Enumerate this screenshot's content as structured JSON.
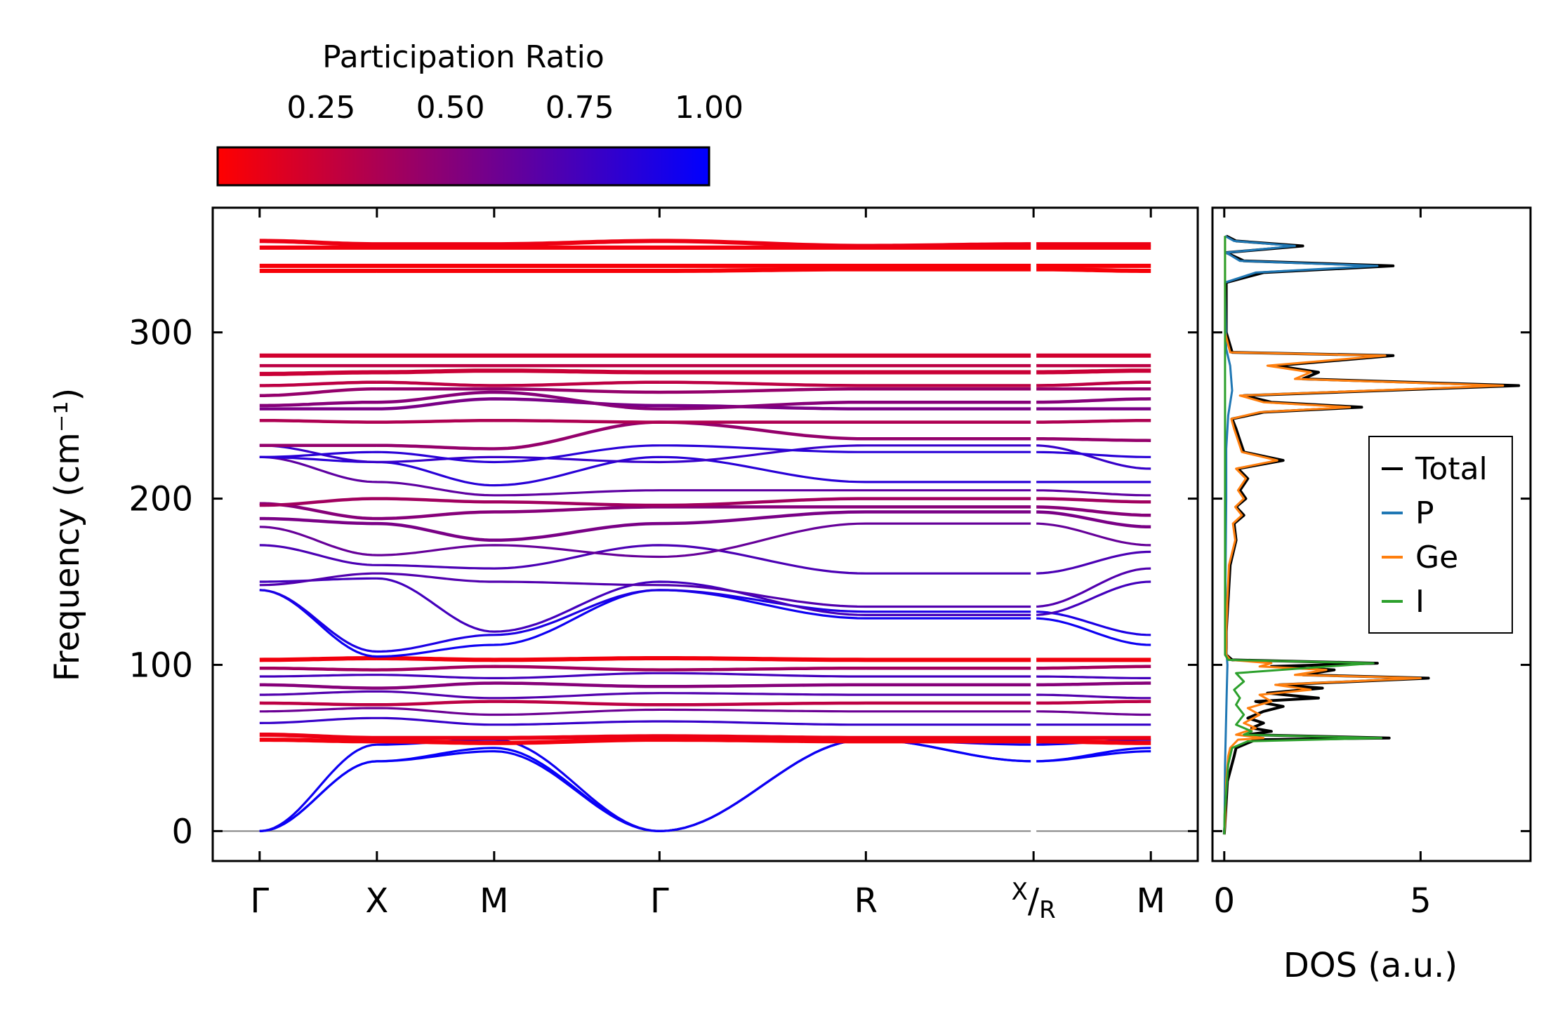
{
  "colors": {
    "low": "#ff0000",
    "high": "#0000ff",
    "total": "#000000",
    "p": "#1f77b4",
    "ge": "#ff7f0e",
    "i": "#2ca02c",
    "zero_line": "#808080"
  },
  "colorbar": {
    "title": "Participation Ratio",
    "ticks": [
      0.25,
      0.5,
      0.75,
      1.0
    ],
    "tick_labels": [
      "0.25",
      "0.50",
      "0.75",
      "1.00"
    ],
    "range": [
      0.05,
      1.0
    ]
  },
  "chart_data": [
    {
      "type": "line",
      "title": "",
      "xlabel": "",
      "ylabel": "Frequency (cm⁻¹)",
      "ylim": [
        -18,
        375
      ],
      "yticks": [
        0,
        100,
        200,
        300
      ],
      "ytick_labels": [
        "0",
        "100",
        "200",
        "300"
      ],
      "path_positions": [
        0.0,
        1.0,
        2.0,
        3.41,
        5.17,
        6.6,
        7.6
      ],
      "path_labels": [
        "Γ",
        "X",
        "M",
        "Γ",
        "R",
        "X/R",
        "M"
      ],
      "xlim": [
        -0.4,
        8.0
      ],
      "break_at": 6.6,
      "color_by": "participation_ratio",
      "bands": [
        {
          "freq": [
            0,
            42,
            50,
            0,
            55,
            42,
            50
          ],
          "pr": 0.98
        },
        {
          "freq": [
            0,
            42,
            48,
            0,
            55,
            42,
            48
          ],
          "pr": 0.97
        },
        {
          "freq": [
            0,
            52,
            55,
            0,
            55,
            52,
            55
          ],
          "pr": 0.95
        },
        {
          "freq": [
            55,
            54,
            53,
            55,
            54,
            54,
            53
          ],
          "pr": 0.1
        },
        {
          "freq": [
            58,
            56,
            56,
            57,
            56,
            56,
            56
          ],
          "pr": 0.12
        },
        {
          "freq": [
            65,
            68,
            64,
            66,
            64,
            64,
            64
          ],
          "pr": 0.8
        },
        {
          "freq": [
            72,
            74,
            70,
            73,
            72,
            72,
            70
          ],
          "pr": 0.6
        },
        {
          "freq": [
            77,
            76,
            78,
            76,
            77,
            77,
            78
          ],
          "pr": 0.3
        },
        {
          "freq": [
            82,
            84,
            80,
            83,
            82,
            82,
            80
          ],
          "pr": 0.7
        },
        {
          "freq": [
            88,
            86,
            89,
            87,
            88,
            88,
            89
          ],
          "pr": 0.5
        },
        {
          "freq": [
            93,
            94,
            92,
            95,
            93,
            93,
            92
          ],
          "pr": 0.75
        },
        {
          "freq": [
            98,
            97,
            99,
            97,
            98,
            98,
            99
          ],
          "pr": 0.4
        },
        {
          "freq": [
            103,
            104,
            103,
            104,
            103,
            103,
            103
          ],
          "pr": 0.1
        },
        {
          "freq": [
            145,
            105,
            112,
            145,
            128,
            128,
            112
          ],
          "pr": 0.95
        },
        {
          "freq": [
            145,
            108,
            118,
            145,
            132,
            132,
            118
          ],
          "pr": 0.9
        },
        {
          "freq": [
            150,
            152,
            120,
            150,
            130,
            130,
            150
          ],
          "pr": 0.75
        },
        {
          "freq": [
            148,
            155,
            150,
            148,
            135,
            135,
            158
          ],
          "pr": 0.7
        },
        {
          "freq": [
            172,
            160,
            158,
            172,
            155,
            155,
            168
          ],
          "pr": 0.72
        },
        {
          "freq": [
            183,
            166,
            172,
            165,
            185,
            185,
            172
          ],
          "pr": 0.62
        },
        {
          "freq": [
            188,
            185,
            175,
            185,
            192,
            192,
            183
          ],
          "pr": 0.55
        },
        {
          "freq": [
            197,
            188,
            192,
            195,
            195,
            195,
            190
          ],
          "pr": 0.5
        },
        {
          "freq": [
            196,
            200,
            198,
            196,
            200,
            200,
            198
          ],
          "pr": 0.4
        },
        {
          "freq": [
            225,
            210,
            202,
            205,
            205,
            205,
            202
          ],
          "pr": 0.65
        },
        {
          "freq": [
            225,
            222,
            208,
            225,
            210,
            210,
            210
          ],
          "pr": 0.85
        },
        {
          "freq": [
            232,
            222,
            225,
            222,
            232,
            232,
            218
          ],
          "pr": 0.8
        },
        {
          "freq": [
            225,
            228,
            222,
            232,
            228,
            228,
            225
          ],
          "pr": 0.85
        },
        {
          "freq": [
            232,
            232,
            230,
            246,
            236,
            236,
            235
          ],
          "pr": 0.45
        },
        {
          "freq": [
            247,
            246,
            247,
            246,
            246,
            246,
            247
          ],
          "pr": 0.35
        },
        {
          "freq": [
            254,
            254,
            260,
            256,
            254,
            254,
            254
          ],
          "pr": 0.55
        },
        {
          "freq": [
            256,
            258,
            264,
            254,
            258,
            258,
            260
          ],
          "pr": 0.5
        },
        {
          "freq": [
            262,
            266,
            266,
            264,
            266,
            266,
            266
          ],
          "pr": 0.45
        },
        {
          "freq": [
            268,
            270,
            268,
            270,
            268,
            268,
            270
          ],
          "pr": 0.3
        },
        {
          "freq": [
            275,
            276,
            277,
            276,
            276,
            276,
            277
          ],
          "pr": 0.25
        },
        {
          "freq": [
            280,
            280,
            280,
            280,
            280,
            280,
            280
          ],
          "pr": 0.3
        },
        {
          "freq": [
            286,
            286,
            286,
            286,
            286,
            286,
            286
          ],
          "pr": 0.22
        },
        {
          "freq": [
            337,
            337,
            337,
            337,
            338,
            338,
            337
          ],
          "pr": 0.08
        },
        {
          "freq": [
            340,
            340,
            340,
            340,
            340,
            340,
            340
          ],
          "pr": 0.08
        },
        {
          "freq": [
            351,
            351,
            351,
            351,
            351,
            351,
            351
          ],
          "pr": 0.1
        },
        {
          "freq": [
            355,
            353,
            353,
            355,
            352,
            353,
            353
          ],
          "pr": 0.12
        }
      ]
    },
    {
      "type": "line",
      "title": "",
      "xlabel": "DOS (a.u.)",
      "ylabel": "",
      "xlim": [
        -0.3,
        7.8
      ],
      "ylim": [
        -18,
        375
      ],
      "xticks": [
        0,
        5
      ],
      "xtick_labels": [
        "0",
        "5"
      ],
      "legend_position": "right",
      "series": [
        {
          "name": "Total",
          "points": [
            [
              0,
              -2
            ],
            [
              0.02,
              5
            ],
            [
              0.08,
              30
            ],
            [
              0.25,
              45
            ],
            [
              0.3,
              50
            ],
            [
              0.8,
              55
            ],
            [
              4.2,
              56
            ],
            [
              0.6,
              58
            ],
            [
              1.2,
              60
            ],
            [
              0.7,
              62
            ],
            [
              1.0,
              65
            ],
            [
              0.6,
              68
            ],
            [
              1.0,
              72
            ],
            [
              1.5,
              75
            ],
            [
              0.8,
              78
            ],
            [
              2.4,
              80
            ],
            [
              1.1,
              83
            ],
            [
              2.5,
              86
            ],
            [
              1.4,
              88
            ],
            [
              5.2,
              92
            ],
            [
              2.0,
              94
            ],
            [
              2.8,
              97
            ],
            [
              1.2,
              99
            ],
            [
              3.9,
              101
            ],
            [
              0.2,
              103
            ],
            [
              0.05,
              106
            ],
            [
              0.05,
              120
            ],
            [
              0.1,
              140
            ],
            [
              0.15,
              160
            ],
            [
              0.3,
              175
            ],
            [
              0.25,
              185
            ],
            [
              0.5,
              190
            ],
            [
              0.3,
              195
            ],
            [
              0.55,
              200
            ],
            [
              0.4,
              205
            ],
            [
              0.6,
              212
            ],
            [
              0.35,
              218
            ],
            [
              1.5,
              223
            ],
            [
              0.5,
              228
            ],
            [
              0.4,
              235
            ],
            [
              0.3,
              242
            ],
            [
              0.2,
              248
            ],
            [
              1.0,
              252
            ],
            [
              3.5,
              255
            ],
            [
              1.2,
              258
            ],
            [
              0.5,
              262
            ],
            [
              7.5,
              268
            ],
            [
              2.0,
              272
            ],
            [
              2.4,
              276
            ],
            [
              1.3,
              280
            ],
            [
              4.3,
              286
            ],
            [
              0.2,
              288
            ],
            [
              0.05,
              300
            ],
            [
              0.05,
              330
            ],
            [
              1.0,
              336
            ],
            [
              4.3,
              340
            ],
            [
              0.5,
              343
            ],
            [
              0.05,
              348
            ],
            [
              2.0,
              352
            ],
            [
              0.3,
              355
            ],
            [
              0.05,
              358
            ]
          ]
        },
        {
          "name": "P",
          "points": [
            [
              0,
              -2
            ],
            [
              0.01,
              10
            ],
            [
              0.02,
              40
            ],
            [
              0.04,
              60
            ],
            [
              0.06,
              80
            ],
            [
              0.08,
              100
            ],
            [
              0.05,
              110
            ],
            [
              0.03,
              150
            ],
            [
              0.05,
              200
            ],
            [
              0.05,
              230
            ],
            [
              0.1,
              250
            ],
            [
              0.2,
              265
            ],
            [
              0.15,
              280
            ],
            [
              0.05,
              290
            ],
            [
              0.02,
              330
            ],
            [
              0.8,
              336
            ],
            [
              3.9,
              340
            ],
            [
              0.4,
              343
            ],
            [
              0.05,
              348
            ],
            [
              1.8,
              352
            ],
            [
              0.25,
              355
            ],
            [
              0.02,
              358
            ]
          ]
        },
        {
          "name": "Ge",
          "points": [
            [
              0,
              -2
            ],
            [
              0.02,
              5
            ],
            [
              0.05,
              30
            ],
            [
              0.1,
              45
            ],
            [
              0.15,
              50
            ],
            [
              0.35,
              55
            ],
            [
              1.0,
              56
            ],
            [
              0.3,
              58
            ],
            [
              0.8,
              62
            ],
            [
              0.5,
              65
            ],
            [
              0.9,
              70
            ],
            [
              0.6,
              74
            ],
            [
              1.2,
              78
            ],
            [
              0.9,
              82
            ],
            [
              2.2,
              85
            ],
            [
              1.3,
              88
            ],
            [
              5.0,
              92
            ],
            [
              1.8,
              94
            ],
            [
              2.6,
              97
            ],
            [
              0.9,
              99
            ],
            [
              1.2,
              101
            ],
            [
              0.15,
              103
            ],
            [
              0.05,
              106
            ],
            [
              0.05,
              120
            ],
            [
              0.08,
              140
            ],
            [
              0.12,
              160
            ],
            [
              0.28,
              175
            ],
            [
              0.22,
              185
            ],
            [
              0.45,
              190
            ],
            [
              0.28,
              195
            ],
            [
              0.5,
              200
            ],
            [
              0.35,
              205
            ],
            [
              0.55,
              212
            ],
            [
              0.3,
              218
            ],
            [
              1.35,
              223
            ],
            [
              0.45,
              228
            ],
            [
              0.35,
              235
            ],
            [
              0.25,
              242
            ],
            [
              0.18,
              248
            ],
            [
              0.9,
              252
            ],
            [
              3.2,
              255
            ],
            [
              1.0,
              258
            ],
            [
              0.4,
              262
            ],
            [
              7.1,
              268
            ],
            [
              1.8,
              272
            ],
            [
              2.2,
              276
            ],
            [
              1.1,
              280
            ],
            [
              4.1,
              286
            ],
            [
              0.15,
              288
            ],
            [
              0.02,
              300
            ],
            [
              0.02,
              335
            ],
            [
              0.02,
              358
            ]
          ]
        },
        {
          "name": "I",
          "points": [
            [
              0,
              -2
            ],
            [
              0.01,
              10
            ],
            [
              0.1,
              40
            ],
            [
              0.2,
              50
            ],
            [
              0.6,
              54
            ],
            [
              4.0,
              56
            ],
            [
              0.5,
              58
            ],
            [
              0.7,
              60
            ],
            [
              0.3,
              64
            ],
            [
              0.5,
              70
            ],
            [
              0.3,
              76
            ],
            [
              0.4,
              80
            ],
            [
              0.25,
              85
            ],
            [
              0.5,
              90
            ],
            [
              0.3,
              95
            ],
            [
              3.8,
              101
            ],
            [
              0.1,
              103
            ],
            [
              0.02,
              106
            ],
            [
              0.02,
              150
            ],
            [
              0.02,
              200
            ],
            [
              0.02,
              250
            ],
            [
              0.02,
              290
            ],
            [
              0.02,
              330
            ],
            [
              0.02,
              358
            ]
          ]
        }
      ]
    }
  ]
}
